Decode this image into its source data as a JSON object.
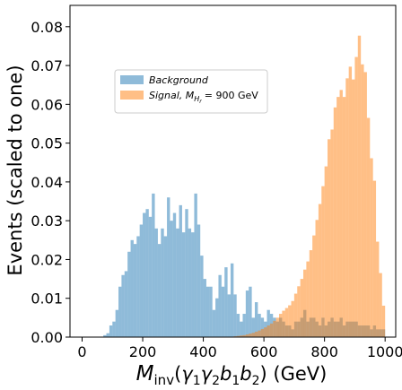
{
  "chart_data": {
    "type": "histogram",
    "xlabel_main": "M",
    "xlabel_sub": "inv",
    "xlabel_args": "(γ",
    "xlabel_full": "M_inv(γ1γ2b1b2) (GeV)",
    "ylabel": "Events (scaled to one)",
    "xlim": [
      -40,
      1035
    ],
    "ylim": [
      0,
      0.0855
    ],
    "xticks": [
      0,
      200,
      400,
      600,
      800,
      1000
    ],
    "xtick_labels": [
      "0",
      "200",
      "400",
      "600",
      "800",
      "1000"
    ],
    "yticks": [
      0.0,
      0.01,
      0.02,
      0.03,
      0.04,
      0.05,
      0.06,
      0.07,
      0.08
    ],
    "ytick_labels": [
      "0.00",
      "0.01",
      "0.02",
      "0.03",
      "0.04",
      "0.05",
      "0.06",
      "0.07",
      "0.08"
    ],
    "bin_width": 10,
    "grid": false,
    "legend_position": "upper-left-center",
    "series": [
      {
        "name": "Background",
        "color": "#1f77b4",
        "alpha": 0.5,
        "x_start": 0,
        "values": [
          0,
          0,
          0,
          0,
          0,
          0,
          0,
          0.0005,
          0.001,
          0.003,
          0.004,
          0.007,
          0.013,
          0.016,
          0.017,
          0.022,
          0.025,
          0.024,
          0.026,
          0.029,
          0.032,
          0.033,
          0.031,
          0.037,
          0.028,
          0.024,
          0.028,
          0.026,
          0.036,
          0.03,
          0.032,
          0.028,
          0.034,
          0.027,
          0.033,
          0.028,
          0.027,
          0.037,
          0.029,
          0.021,
          0.015,
          0.013,
          0.013,
          0.007,
          0.01,
          0.016,
          0.013,
          0.018,
          0.011,
          0.019,
          0.011,
          0.006,
          0.004,
          0.006,
          0.012,
          0.013,
          0.005,
          0.009,
          0.006,
          0.005,
          0.004,
          0.007,
          0.006,
          0.005,
          0.004,
          0.005,
          0.004,
          0.003,
          0.003,
          0.002,
          0.004,
          0.004,
          0.005,
          0.007,
          0.004,
          0.005,
          0.005,
          0.004,
          0.003,
          0.005,
          0.003,
          0.004,
          0.005,
          0.004,
          0.004,
          0.005,
          0.003,
          0.004,
          0.004,
          0.004,
          0.004,
          0.003,
          0.003,
          0.003,
          0.003,
          0.002,
          0.003,
          0.002,
          0.002,
          0.002
        ]
      },
      {
        "name": "Signal, M_{H_r} = 900 GeV",
        "color": "#ff7f0e",
        "alpha": 0.5,
        "x_start": 500,
        "values": [
          0.0002,
          0.0003,
          0.0004,
          0.0005,
          0.0007,
          0.0009,
          0.0011,
          0.0014,
          0.0017,
          0.0021,
          0.0025,
          0.003,
          0.0035,
          0.0042,
          0.005,
          0.006,
          0.0068,
          0.0075,
          0.0082,
          0.0093,
          0.0112,
          0.0131,
          0.015,
          0.0174,
          0.0195,
          0.0224,
          0.0262,
          0.0302,
          0.0343,
          0.0389,
          0.044,
          0.051,
          0.0535,
          0.0592,
          0.0619,
          0.0637,
          0.0619,
          0.0667,
          0.0697,
          0.0664,
          0.0722,
          0.0777,
          0.0703,
          0.0683,
          0.0565,
          0.0461,
          0.0403,
          0.0246,
          0.0165,
          0.0081
        ]
      }
    ],
    "legend": [
      {
        "label_prefix": "Background",
        "label_suffix": ""
      },
      {
        "label_prefix": "Signal, M",
        "label_sub": "H",
        "label_subsub": "r",
        "label_suffix": "= 900 GeV"
      }
    ]
  }
}
